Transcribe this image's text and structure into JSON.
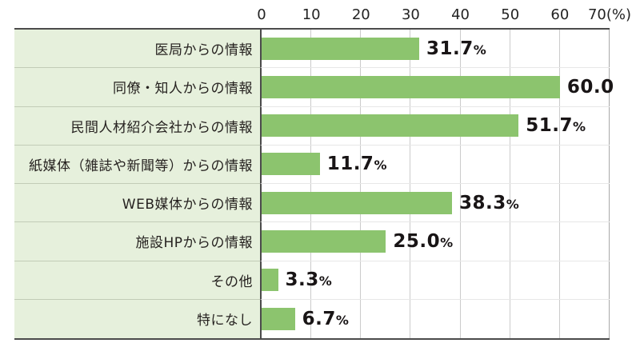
{
  "chart_data": {
    "type": "bar",
    "orientation": "horizontal",
    "title": "",
    "xlabel": "",
    "ylabel": "",
    "axis_unit_label": "(%)",
    "xlim": [
      0,
      70
    ],
    "x_ticks": [
      0,
      10,
      20,
      30,
      40,
      50,
      60,
      70
    ],
    "x_tick_labels": [
      "0",
      "10",
      "20",
      "30",
      "40",
      "50",
      "60",
      "70"
    ],
    "grid": true,
    "legend": false,
    "categories": [
      "医局からの情報",
      "同僚・知人からの情報",
      "民間人材紹介会社からの情報",
      "紙媒体（雑誌や新聞等）からの情報",
      "WEB媒体からの情報",
      "施設HPからの情報",
      "その他",
      "特になし"
    ],
    "values": [
      31.7,
      60.0,
      51.7,
      11.7,
      38.3,
      25.0,
      3.3,
      6.7
    ],
    "value_labels": [
      {
        "num": "31.7",
        "suffix": "%"
      },
      {
        "num": "60.0",
        "suffix": ""
      },
      {
        "num": "51.7",
        "suffix": "%"
      },
      {
        "num": "11.7",
        "suffix": "%"
      },
      {
        "num": "38.3",
        "suffix": "%"
      },
      {
        "num": "25.0",
        "suffix": "%"
      },
      {
        "num": "3.3",
        "suffix": "%"
      },
      {
        "num": "6.7",
        "suffix": "%"
      }
    ],
    "colors": {
      "bar": "#8cc46e",
      "category_bg": "#e6f0dc",
      "gridline": "#cbcbcb",
      "frame_border": "#4b4b4b",
      "text": "#1f1f1f"
    }
  }
}
